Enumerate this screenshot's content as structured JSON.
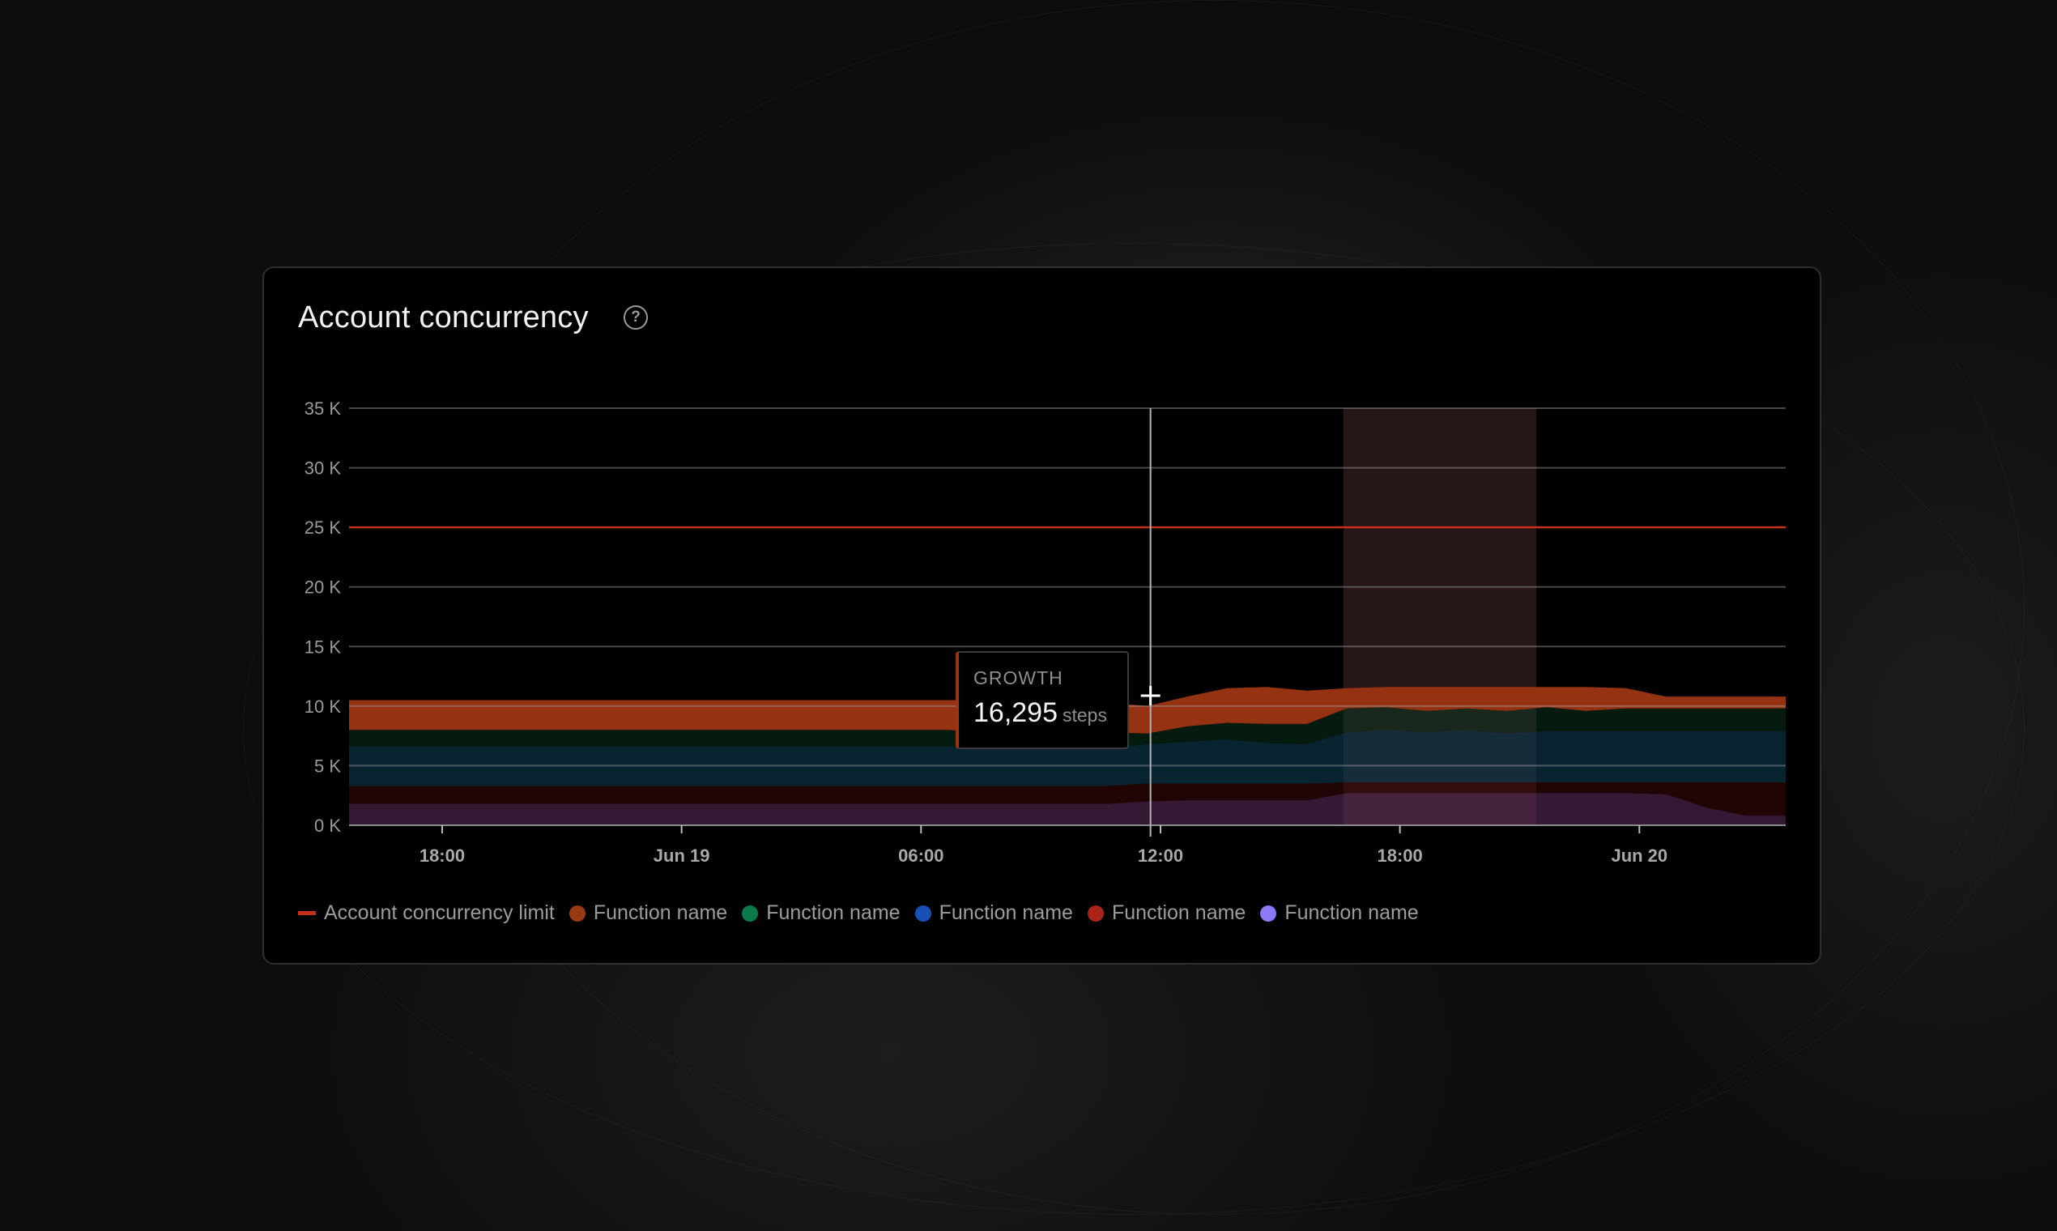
{
  "card": {
    "title": "Account concurrency",
    "help_icon": "question-circle-icon"
  },
  "tooltip": {
    "label": "GROWTH",
    "value": "16,295",
    "unit": "steps"
  },
  "legend": [
    {
      "label": "Account concurrency limit",
      "color": "#c8321c",
      "shape": "line"
    },
    {
      "label": "Function name",
      "color": "#9a3a12",
      "shape": "dot"
    },
    {
      "label": "Function name",
      "color": "#0b7a4c",
      "shape": "dot"
    },
    {
      "label": "Function name",
      "color": "#1a4fb8",
      "shape": "dot"
    },
    {
      "label": "Function name",
      "color": "#a82418",
      "shape": "dot"
    },
    {
      "label": "Function name",
      "color": "#8b7af8",
      "shape": "dot"
    }
  ],
  "chart_data": {
    "type": "area",
    "stacked": true,
    "title": "",
    "xlabel": "",
    "ylabel": "",
    "x_start": "06-18 15:40",
    "x_end": "06-20 03:40",
    "x_step_hours": 1,
    "x_ticks": [
      {
        "label": "18:00",
        "time": "06-18 18:00"
      },
      {
        "label": "Jun 19",
        "time": "06-19 00:00"
      },
      {
        "label": "06:00",
        "time": "06-19 06:00"
      },
      {
        "label": "12:00",
        "time": "06-19 12:00"
      },
      {
        "label": "18:00",
        "time": "06-19 18:00"
      },
      {
        "label": "Jun 20",
        "time": "06-20 00:00"
      }
    ],
    "ylim": [
      0,
      35
    ],
    "y_unit": "K",
    "y_ticks": [
      {
        "label": "0 K",
        "value": 0
      },
      {
        "label": "5 K",
        "value": 5
      },
      {
        "label": "10 K",
        "value": 10
      },
      {
        "label": "15 K",
        "value": 15
      },
      {
        "label": "20 K",
        "value": 20
      },
      {
        "label": "25 K",
        "value": 25
      },
      {
        "label": "30 K",
        "value": 30
      },
      {
        "label": "35 K",
        "value": 35
      }
    ],
    "grid": true,
    "limit_line": {
      "name": "Account concurrency limit",
      "value": 25,
      "color": "#c8321c"
    },
    "highlight_range": [
      "06-19 16:35",
      "06-19 21:25"
    ],
    "hover_time": "06-19 11:45",
    "series_stack_order_bottom_to_top": [
      4,
      3,
      2,
      1,
      0
    ],
    "series": [
      {
        "name": "Function name",
        "color": "#9a3412",
        "values": [
          2.5,
          2.5,
          2.5,
          2.5,
          2.5,
          2.5,
          2.5,
          2.5,
          2.5,
          2.5,
          2.5,
          2.5,
          2.5,
          2.5,
          2.5,
          2.5,
          2.7,
          2.5,
          2.5,
          2.5,
          2.3,
          2.5,
          2.9,
          3.1,
          2.8,
          1.7,
          1.7,
          2.0,
          1.8,
          2.0,
          1.7,
          2.0,
          1.7,
          1.0,
          1.0,
          1.0,
          1.0
        ]
      },
      {
        "name": "Function name",
        "color": "#0a7a4c",
        "values": [
          1.4,
          1.4,
          1.4,
          1.4,
          1.4,
          1.4,
          1.4,
          1.4,
          1.4,
          1.4,
          1.4,
          1.4,
          1.4,
          1.4,
          1.4,
          1.4,
          1.4,
          1.4,
          1.4,
          1.4,
          0.9,
          1.3,
          1.4,
          1.6,
          1.7,
          2.0,
          1.9,
          1.8,
          1.8,
          1.9,
          2.0,
          1.7,
          1.9,
          1.9,
          1.9,
          1.9,
          1.9
        ]
      },
      {
        "name": "Function name",
        "color": "#1a4fb8",
        "values": [
          3.3,
          3.3,
          3.3,
          3.3,
          3.3,
          3.3,
          3.3,
          3.3,
          3.3,
          3.3,
          3.3,
          3.3,
          3.3,
          3.3,
          3.3,
          3.3,
          3.1,
          3.1,
          3.1,
          3.1,
          3.3,
          3.5,
          3.7,
          3.4,
          3.3,
          4.2,
          4.4,
          4.2,
          4.4,
          4.1,
          4.3,
          4.3,
          4.3,
          4.3,
          4.3,
          4.3,
          4.3
        ]
      },
      {
        "name": "Function name",
        "color": "#a82418",
        "values": [
          1.5,
          1.5,
          1.5,
          1.5,
          1.5,
          1.5,
          1.5,
          1.5,
          1.5,
          1.5,
          1.5,
          1.5,
          1.5,
          1.5,
          1.5,
          1.5,
          1.5,
          1.5,
          1.5,
          1.5,
          1.5,
          1.4,
          1.4,
          1.4,
          1.4,
          0.9,
          0.9,
          0.9,
          0.9,
          0.9,
          0.9,
          0.9,
          0.9,
          1.0,
          2.1,
          2.8,
          2.8
        ]
      },
      {
        "name": "Function name",
        "color": "#8b7af8",
        "values": [
          1.8,
          1.8,
          1.8,
          1.8,
          1.8,
          1.8,
          1.8,
          1.8,
          1.8,
          1.8,
          1.8,
          1.8,
          1.8,
          1.8,
          1.8,
          1.8,
          1.8,
          1.8,
          1.8,
          1.8,
          2.0,
          2.1,
          2.1,
          2.1,
          2.1,
          2.7,
          2.7,
          2.7,
          2.7,
          2.7,
          2.7,
          2.7,
          2.7,
          2.6,
          1.5,
          0.8,
          0.8
        ]
      }
    ]
  }
}
